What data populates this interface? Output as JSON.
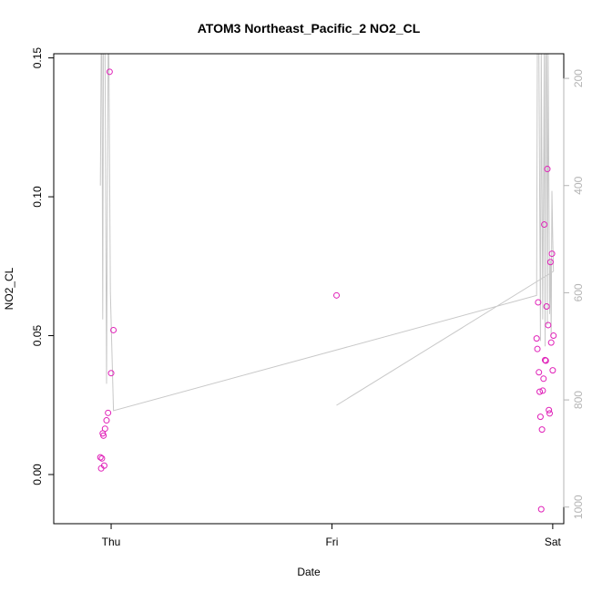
{
  "chart_data": {
    "type": "scatter",
    "title": "ATOM3 Northeast_Pacific_2 NO2_CL",
    "xlabel": "Date",
    "ylabel": "NO2_CL",
    "x_ticks": [
      "Thu",
      "Fri",
      "Sat"
    ],
    "x_range_days": [
      -0.26,
      0.05
    ],
    "ylim": [
      -0.0177,
      0.1515
    ],
    "y_ticks": [
      0.0,
      0.05,
      0.1,
      0.15
    ],
    "y_tick_labels": [
      "0.00",
      "0.05",
      "0.10",
      "0.15"
    ],
    "y2_ticks": [
      200,
      400,
      600,
      800,
      1000
    ],
    "y2_lim": [
      1031,
      154
    ],
    "colors": {
      "points": "#e020b8",
      "line": "#c8c8c8",
      "right_axis": "#b4b4b4"
    },
    "series": [
      {
        "kind": "points",
        "points": [
          {
            "x": "Wed 22:50",
            "y": 0.0062
          },
          {
            "x": "Wed 22:55",
            "y": 0.0022
          },
          {
            "x": "Wed 23:00",
            "y": 0.0058
          },
          {
            "x": "Wed 23:05",
            "y": 0.0148
          },
          {
            "x": "Wed 23:10",
            "y": 0.014
          },
          {
            "x": "Wed 23:15",
            "y": 0.0032
          },
          {
            "x": "Wed 23:20",
            "y": 0.0165
          },
          {
            "x": "Wed 23:30",
            "y": 0.0195
          },
          {
            "x": "Wed 23:40",
            "y": 0.0222
          },
          {
            "x": "Wed 23:50",
            "y": 0.145
          },
          {
            "x": "Thu 00:00",
            "y": 0.0365
          },
          {
            "x": "Thu 00:15",
            "y": 0.052
          },
          {
            "x": "Fri 00:30",
            "y": 0.0645
          },
          {
            "x": "Fri 22:15",
            "y": 0.049
          },
          {
            "x": "Fri 22:20",
            "y": 0.0452
          },
          {
            "x": "Fri 22:25",
            "y": 0.062
          },
          {
            "x": "Fri 22:30",
            "y": 0.0368
          },
          {
            "x": "Fri 22:35",
            "y": 0.0298
          },
          {
            "x": "Fri 22:40",
            "y": 0.0208
          },
          {
            "x": "Fri 22:45",
            "y": -0.0125
          },
          {
            "x": "Fri 22:50",
            "y": 0.0162
          },
          {
            "x": "Fri 22:55",
            "y": 0.0302
          },
          {
            "x": "Fri 23:00",
            "y": 0.0345
          },
          {
            "x": "Fri 23:05",
            "y": 0.09
          },
          {
            "x": "Fri 23:10",
            "y": 0.0412
          },
          {
            "x": "Fri 23:15",
            "y": 0.041
          },
          {
            "x": "Fri 23:20",
            "y": 0.0605
          },
          {
            "x": "Fri 23:25",
            "y": 0.11
          },
          {
            "x": "Fri 23:30",
            "y": 0.0538
          },
          {
            "x": "Fri 23:35",
            "y": 0.0232
          },
          {
            "x": "Fri 23:40",
            "y": 0.022
          },
          {
            "x": "Fri 23:45",
            "y": 0.0765
          },
          {
            "x": "Fri 23:50",
            "y": 0.0475
          },
          {
            "x": "Fri 23:55",
            "y": 0.0795
          },
          {
            "x": "Sat 00:00",
            "y": 0.0375
          },
          {
            "x": "Sat 00:05",
            "y": 0.05
          }
        ]
      },
      {
        "kind": "line",
        "axis": "right",
        "points": [
          {
            "x": "Wed 22:50",
            "y": 400
          },
          {
            "x": "Wed 22:55",
            "y": 150
          },
          {
            "x": "Wed 23:00",
            "y": 150
          },
          {
            "x": "Wed 23:05",
            "y": 650
          },
          {
            "x": "Wed 23:10",
            "y": 150
          },
          {
            "x": "Wed 23:20",
            "y": 150
          },
          {
            "x": "Wed 23:30",
            "y": 770
          },
          {
            "x": "Wed 23:40",
            "y": 150
          },
          {
            "x": "Wed 23:45",
            "y": 150
          },
          {
            "x": "Wed 23:55",
            "y": 600
          },
          {
            "x": "Thu 00:15",
            "y": 820
          },
          {
            "x": "Fri 22:15",
            "y": 605
          },
          {
            "x": "Fri 22:20",
            "y": 150
          },
          {
            "x": "Fri 22:25",
            "y": 150
          },
          {
            "x": "Fri 22:30",
            "y": 150
          },
          {
            "x": "Fri 22:40",
            "y": 690
          },
          {
            "x": "Fri 22:45",
            "y": 150
          },
          {
            "x": "Fri 22:55",
            "y": 650
          },
          {
            "x": "Fri 23:05",
            "y": 150
          },
          {
            "x": "Fri 23:10",
            "y": 700
          },
          {
            "x": "Fri 23:15",
            "y": 150
          },
          {
            "x": "Fri 23:20",
            "y": 150
          },
          {
            "x": "Fri 23:25",
            "y": 660
          },
          {
            "x": "Fri 23:30",
            "y": 150
          },
          {
            "x": "Fri 23:40",
            "y": 640
          },
          {
            "x": "Fri 23:45",
            "y": 540
          },
          {
            "x": "Fri 23:50",
            "y": 680
          },
          {
            "x": "Fri 23:55",
            "y": 410
          },
          {
            "x": "Sat 00:00",
            "y": 500
          },
          {
            "x": "Sat 00:05",
            "y": 560
          },
          {
            "x": "Fri 00:30",
            "y": 810
          }
        ]
      }
    ]
  }
}
